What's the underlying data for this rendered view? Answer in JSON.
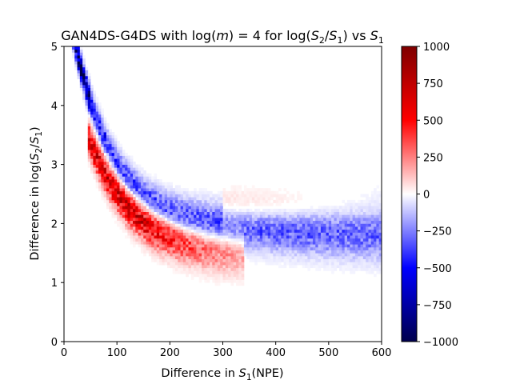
{
  "chart_data": {
    "type": "heatmap",
    "title": "GAN4DS-G4DS with log(m) = 4 for log(S₂/S₁) vs S₁",
    "title_parts": {
      "prefix": "GAN4DS-G4DS with log(",
      "m": "m",
      "mid": ") = 4 for log(",
      "s2": "S",
      "s2_sub": "2",
      "slash": "/",
      "s1": "S",
      "s1_sub": "1",
      "suffix": ") vs ",
      "s1b": "S",
      "s1b_sub": "1"
    },
    "xlabel": "Difference in S₁(NPE)",
    "xlabel_parts": {
      "prefix": "Difference in ",
      "s": "S",
      "sub": "1",
      "suffix": "(NPE)"
    },
    "ylabel": "Difference in log(S₂/S₁)",
    "ylabel_parts": {
      "prefix": "Difference in log(",
      "s2": "S",
      "s2_sub": "2",
      "slash": "/",
      "s1": "S",
      "s1_sub": "1",
      "suffix": ")"
    },
    "xlim": [
      0,
      600
    ],
    "ylim": [
      0,
      5
    ],
    "x_ticks": [
      0,
      100,
      200,
      300,
      400,
      500,
      600
    ],
    "y_ticks": [
      0,
      1,
      2,
      3,
      4,
      5
    ],
    "colorbar": {
      "colormap": "seismic",
      "vmin": -1000,
      "vmax": 1000,
      "ticks": [
        1000,
        750,
        500,
        250,
        0,
        -250,
        -500,
        -750,
        -1000
      ],
      "tick_labels": [
        "1000",
        "750",
        "500",
        "250",
        "0",
        "−250",
        "−500",
        "−750",
        "−1000"
      ]
    },
    "colors": {
      "negative": "#00004c",
      "positive": "#7f0000",
      "zero": "#ffffff"
    },
    "bins": {
      "nx": 120,
      "ny": 100
    },
    "components": [
      {
        "name": "blue-early-band",
        "sign": -1,
        "x_range": [
          15,
          50
        ],
        "curve": "upper",
        "amplitude": 900
      },
      {
        "name": "red-band",
        "sign": 1,
        "x_range": [
          45,
          340
        ],
        "curve": "lower",
        "amplitude": 650
      },
      {
        "name": "blue-band",
        "sign": -1,
        "x_range": [
          50,
          600
        ],
        "curve": "upper",
        "amplitude": 380
      },
      {
        "name": "faint-red-tail",
        "sign": 1,
        "x_range": [
          300,
          600
        ],
        "curve": "tail",
        "amplitude": 160
      }
    ]
  }
}
